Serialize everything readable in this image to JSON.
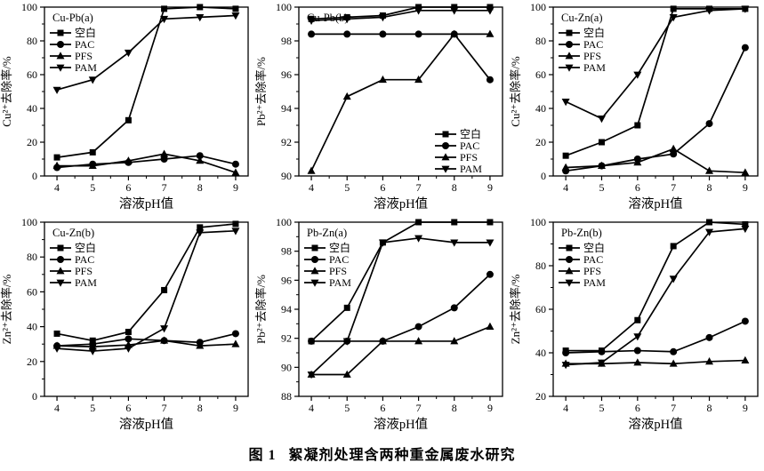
{
  "figure": {
    "caption_label": "图 1",
    "caption_text": "絮凝剂处理含两种重金属废水研究",
    "background": "#ffffff",
    "line_color": "#000000"
  },
  "chart_data": [
    {
      "type": "line",
      "title": "Cu-Pb(a)",
      "xlabel": "溶液pH值",
      "ylabel": "Cu²⁺去除率/%",
      "x": [
        4,
        5,
        6,
        7,
        8,
        9
      ],
      "xlim": [
        3.65,
        9.35
      ],
      "ylim": [
        0,
        100
      ],
      "ytick_step": 20,
      "y_minor_step": 10,
      "grid": false,
      "legend_position": "top-left",
      "series": [
        {
          "name": "空白",
          "marker": "square",
          "values": [
            11,
            14,
            33,
            99,
            100,
            99
          ]
        },
        {
          "name": "PAC",
          "marker": "circle",
          "values": [
            5,
            7,
            8,
            10,
            12,
            7
          ]
        },
        {
          "name": "PFS",
          "marker": "triangle-up",
          "values": [
            6,
            6,
            9,
            13,
            9,
            2
          ]
        },
        {
          "name": "PAM",
          "marker": "triangle-down",
          "values": [
            51,
            57,
            73,
            93,
            94,
            95
          ]
        }
      ]
    },
    {
      "type": "line",
      "title": "Cu-Pb(b)",
      "xlabel": "溶液pH值",
      "ylabel": "Pb²⁺去除率/%",
      "x": [
        4,
        5,
        6,
        7,
        8,
        9
      ],
      "xlim": [
        3.65,
        9.35
      ],
      "ylim": [
        90,
        100
      ],
      "ytick_step": 2,
      "y_minor_step": 1,
      "grid": false,
      "legend_position": "bottom-right",
      "series": [
        {
          "name": "空白",
          "marker": "square",
          "values": [
            99.3,
            99.4,
            99.5,
            100,
            100,
            100
          ]
        },
        {
          "name": "PAC",
          "marker": "circle",
          "values": [
            98.4,
            98.4,
            98.4,
            98.4,
            98.4,
            95.7
          ]
        },
        {
          "name": "PFS",
          "marker": "triangle-up",
          "values": [
            90.3,
            94.7,
            95.7,
            95.7,
            98.4,
            98.4
          ]
        },
        {
          "name": "PAM",
          "marker": "triangle-down",
          "values": [
            99.2,
            99.3,
            99.4,
            99.8,
            99.8,
            99.8
          ]
        }
      ]
    },
    {
      "type": "line",
      "title": "Cu-Zn(a)",
      "xlabel": "溶液pH值",
      "ylabel": "Cu²⁺去除率/%",
      "x": [
        4,
        5,
        6,
        7,
        8,
        9
      ],
      "xlim": [
        3.65,
        9.35
      ],
      "ylim": [
        0,
        100
      ],
      "ytick_step": 20,
      "y_minor_step": 10,
      "grid": false,
      "legend_position": "top-left",
      "series": [
        {
          "name": "空白",
          "marker": "square",
          "values": [
            12,
            20,
            30,
            99,
            99,
            99
          ]
        },
        {
          "name": "PAC",
          "marker": "circle",
          "values": [
            3,
            6,
            10,
            13,
            31,
            76
          ]
        },
        {
          "name": "PFS",
          "marker": "triangle-up",
          "values": [
            5,
            6,
            8,
            16,
            3,
            2
          ]
        },
        {
          "name": "PAM",
          "marker": "triangle-down",
          "values": [
            44,
            34,
            60,
            94,
            98,
            99
          ]
        }
      ]
    },
    {
      "type": "line",
      "title": "Cu-Zn(b)",
      "xlabel": "溶液pH值",
      "ylabel": "Zn²⁺去除率/%",
      "x": [
        4,
        5,
        6,
        7,
        8,
        9
      ],
      "xlim": [
        3.65,
        9.35
      ],
      "ylim": [
        0,
        100
      ],
      "ytick_step": 20,
      "y_minor_step": 10,
      "grid": false,
      "legend_position": "top-left",
      "series": [
        {
          "name": "空白",
          "marker": "square",
          "values": [
            36,
            32,
            37,
            61,
            97,
            99
          ]
        },
        {
          "name": "PAC",
          "marker": "circle",
          "values": [
            29,
            30,
            33,
            32,
            31,
            36
          ]
        },
        {
          "name": "PFS",
          "marker": "triangle-up",
          "values": [
            29,
            28.5,
            29.5,
            32,
            29,
            30
          ]
        },
        {
          "name": "PAM",
          "marker": "triangle-down",
          "values": [
            27.5,
            26,
            27.5,
            39,
            94,
            95
          ]
        }
      ]
    },
    {
      "type": "line",
      "title": "Pb-Zn(a)",
      "xlabel": "溶液pH值",
      "ylabel": "Pb²⁺去除率/%",
      "x": [
        4,
        5,
        6,
        7,
        8,
        9
      ],
      "xlim": [
        3.65,
        9.35
      ],
      "ylim": [
        88,
        100
      ],
      "ytick_step": 2,
      "y_minor_step": 1,
      "grid": false,
      "legend_position": "top-left",
      "series": [
        {
          "name": "空白",
          "marker": "square",
          "values": [
            91.8,
            94.1,
            98.6,
            100,
            100,
            100
          ]
        },
        {
          "name": "PAC",
          "marker": "circle",
          "values": [
            91.8,
            91.8,
            91.8,
            92.8,
            94.1,
            96.4
          ]
        },
        {
          "name": "PFS",
          "marker": "triangle-up",
          "values": [
            89.5,
            89.5,
            91.8,
            91.8,
            91.8,
            92.8
          ]
        },
        {
          "name": "PAM",
          "marker": "triangle-down",
          "values": [
            89.5,
            91.8,
            98.6,
            98.9,
            98.6,
            98.6
          ]
        }
      ]
    },
    {
      "type": "line",
      "title": "Pb-Zn(b)",
      "xlabel": "溶液pH值",
      "ylabel": "Zn²⁺去除率/%",
      "x": [
        4,
        5,
        6,
        7,
        8,
        9
      ],
      "xlim": [
        3.65,
        9.35
      ],
      "ylim": [
        20,
        100
      ],
      "ytick_step": 20,
      "y_minor_step": 10,
      "grid": false,
      "legend_position": "top-left",
      "series": [
        {
          "name": "空白",
          "marker": "square",
          "values": [
            41,
            41,
            55,
            89,
            100,
            99
          ]
        },
        {
          "name": "PAC",
          "marker": "circle",
          "values": [
            40,
            40.5,
            41,
            40.5,
            47,
            54.5
          ]
        },
        {
          "name": "PFS",
          "marker": "triangle-up",
          "values": [
            35,
            35,
            35.5,
            35,
            36,
            36.5
          ]
        },
        {
          "name": "PAM",
          "marker": "triangle-down",
          "values": [
            34.5,
            35.5,
            47.5,
            74,
            95.5,
            97
          ]
        }
      ]
    }
  ]
}
